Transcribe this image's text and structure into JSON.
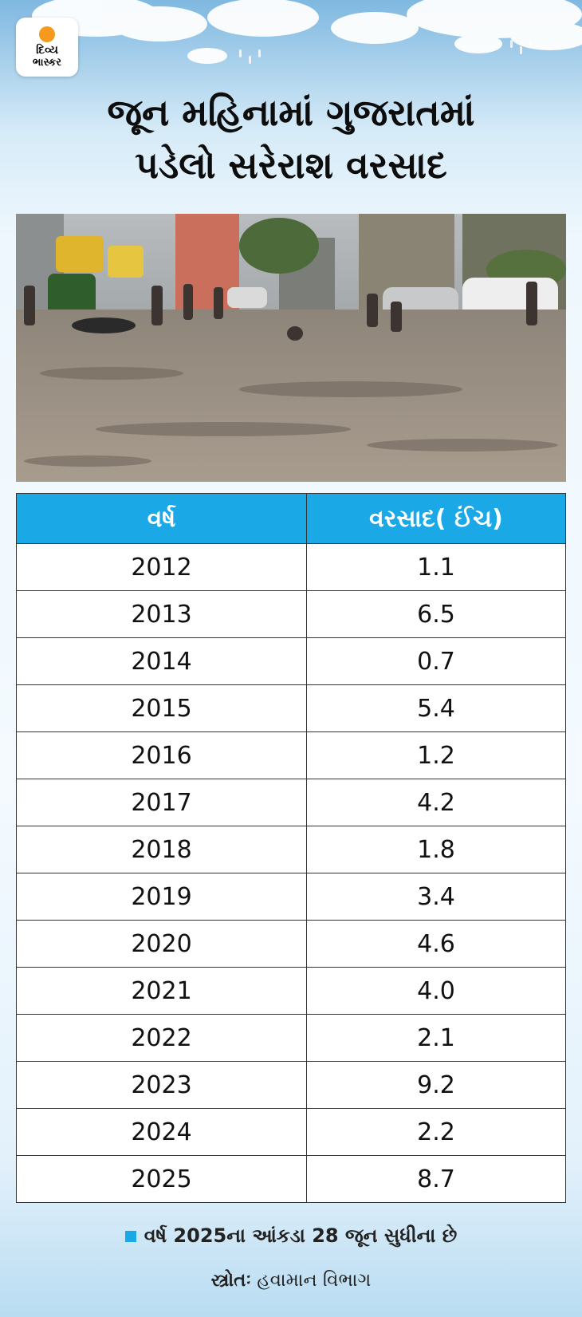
{
  "logo": {
    "line1": "દિવ્ય",
    "line2": "ભાસ્કર"
  },
  "title": {
    "line1": "જૂન મહિનામાં ગુજરાતમાં",
    "line2": "પડેલો સરેરાશ વરસાદ"
  },
  "photo": {
    "subject": "flooded-street-rain"
  },
  "table": {
    "headers": [
      "વર્ષ",
      "વરસાદ( ઈંચ)"
    ],
    "rows": [
      [
        "2012",
        "1.1"
      ],
      [
        "2013",
        "6.5"
      ],
      [
        "2014",
        "0.7"
      ],
      [
        "2015",
        "5.4"
      ],
      [
        "2016",
        "1.2"
      ],
      [
        "2017",
        "4.2"
      ],
      [
        "2018",
        "1.8"
      ],
      [
        "2019",
        "3.4"
      ],
      [
        "2020",
        "4.6"
      ],
      [
        "2021",
        "4.0"
      ],
      [
        "2022",
        "2.1"
      ],
      [
        "2023",
        "9.2"
      ],
      [
        "2024",
        "2.2"
      ],
      [
        "2025",
        "8.7"
      ]
    ]
  },
  "note": "વર્ષ 2025ના આંકડા 28 જૂન સુધીના છે",
  "source": {
    "label": "સ્ત્રોતઃ",
    "value": "હવામાન વિભાગ"
  },
  "colors": {
    "header_bg": "#1aa8e6",
    "accent": "#1aa8e6",
    "sun": "#f59a1c"
  }
}
